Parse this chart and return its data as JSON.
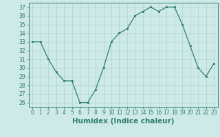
{
  "x": [
    0,
    1,
    2,
    3,
    4,
    5,
    6,
    7,
    8,
    9,
    10,
    11,
    12,
    13,
    14,
    15,
    16,
    17,
    18,
    19,
    20,
    21,
    22,
    23
  ],
  "y": [
    33,
    33,
    31,
    29.5,
    28.5,
    28.5,
    26,
    26,
    27.5,
    30,
    33,
    34,
    34.5,
    36,
    36.5,
    37,
    36.5,
    37,
    37,
    35,
    32.5,
    30,
    29,
    30.5
  ],
  "xlabel": "Humidex (Indice chaleur)",
  "ylim": [
    25.5,
    37.5
  ],
  "xlim": [
    -0.5,
    23.5
  ],
  "yticks": [
    26,
    27,
    28,
    29,
    30,
    31,
    32,
    33,
    34,
    35,
    36,
    37
  ],
  "xticks": [
    0,
    1,
    2,
    3,
    4,
    5,
    6,
    7,
    8,
    9,
    10,
    11,
    12,
    13,
    14,
    15,
    16,
    17,
    18,
    19,
    20,
    21,
    22,
    23
  ],
  "line_color": "#2e7d6e",
  "marker_color": "#2e7d6e",
  "bg_color": "#ceeae8",
  "grid_color": "#b0d8d5",
  "tick_label_fontsize": 5.5,
  "xlabel_fontsize": 7.5
}
